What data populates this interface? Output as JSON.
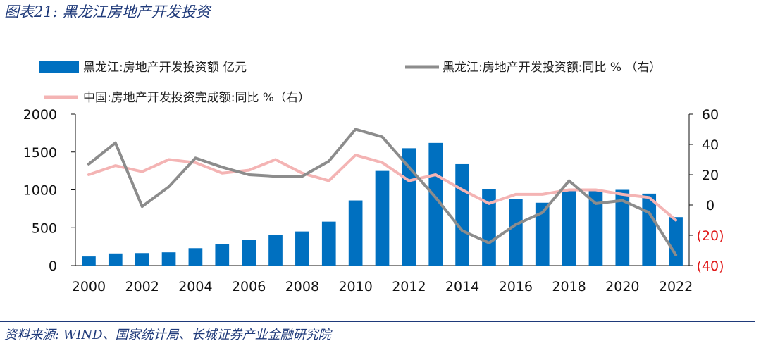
{
  "figure": {
    "title": "图表21: 黑龙江房地产开发投资",
    "source": "资料来源: WIND、国家统计局、长城证券产业金融研究院"
  },
  "colors": {
    "bar": "#0070c0",
    "line_hlj": "#8c8c8c",
    "line_cn": "#f4b4b4",
    "negative_tick": "#e01818",
    "rule": "#1f3a7a"
  },
  "chart_data": {
    "type": "bar+line",
    "title": "",
    "categories": [
      2000,
      2001,
      2002,
      2003,
      2004,
      2005,
      2006,
      2007,
      2008,
      2009,
      2010,
      2011,
      2012,
      2013,
      2014,
      2015,
      2016,
      2017,
      2018,
      2019,
      2020,
      2021,
      2022
    ],
    "x_tick_labels": [
      "2000",
      "2002",
      "2004",
      "2006",
      "2008",
      "2010",
      "2012",
      "2014",
      "2016",
      "2018",
      "2020",
      "2022"
    ],
    "y_left": {
      "min": 0,
      "max": 2000,
      "ticks": [
        "0",
        "500",
        "1000",
        "1500",
        "2000"
      ]
    },
    "y_right": {
      "min": -40,
      "max": 60,
      "ticks": [
        "(40)",
        "(20)",
        "0",
        "20",
        "40",
        "60"
      ],
      "tick_values": [
        -40,
        -20,
        0,
        20,
        40,
        60
      ]
    },
    "series": [
      {
        "name": "黑龙江:房地产开发投资额 亿元",
        "kind": "bar",
        "axis": "left",
        "values": [
          120,
          160,
          165,
          175,
          230,
          285,
          340,
          400,
          450,
          580,
          860,
          1250,
          1550,
          1620,
          1340,
          1010,
          880,
          830,
          1000,
          990,
          1000,
          950,
          640
        ]
      },
      {
        "name": "黑龙江:房地产开发投资额:同比 % （右）",
        "kind": "line",
        "axis": "right",
        "values": [
          27,
          41,
          -1,
          12,
          31,
          25,
          20,
          19,
          19,
          29,
          50,
          45,
          25,
          5,
          -17,
          -25,
          -13,
          -5,
          16,
          1,
          3,
          -5,
          -33
        ]
      },
      {
        "name": "中国:房地产开发投资完成额:同比 %（右）",
        "kind": "line",
        "axis": "right",
        "values": [
          20,
          26,
          22,
          30,
          28,
          21,
          23,
          30,
          21,
          16,
          33,
          28,
          16,
          20,
          10,
          1,
          7,
          7,
          10,
          10,
          7,
          5,
          -10
        ]
      }
    ]
  }
}
